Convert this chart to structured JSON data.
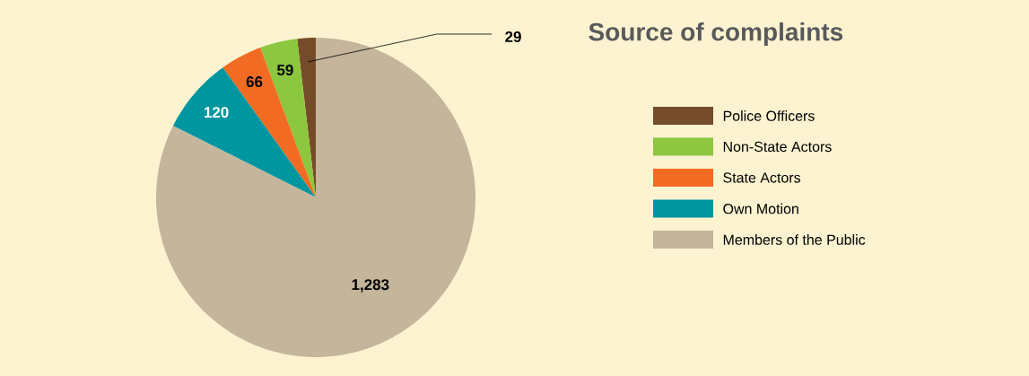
{
  "chart_data": {
    "type": "pie",
    "title": "Source of complaints",
    "categories": [
      "Police Officers",
      "Non-State Actors",
      "State Actors",
      "Own Motion",
      "Members of the Public"
    ],
    "values": [
      29,
      59,
      66,
      120,
      1283
    ],
    "colors": [
      "#754c29",
      "#8dc63f",
      "#f26b22",
      "#0096a0",
      "#c4b59b"
    ],
    "value_labels": [
      "29",
      "59",
      "66",
      "120",
      "1,283"
    ],
    "legend": "right"
  }
}
